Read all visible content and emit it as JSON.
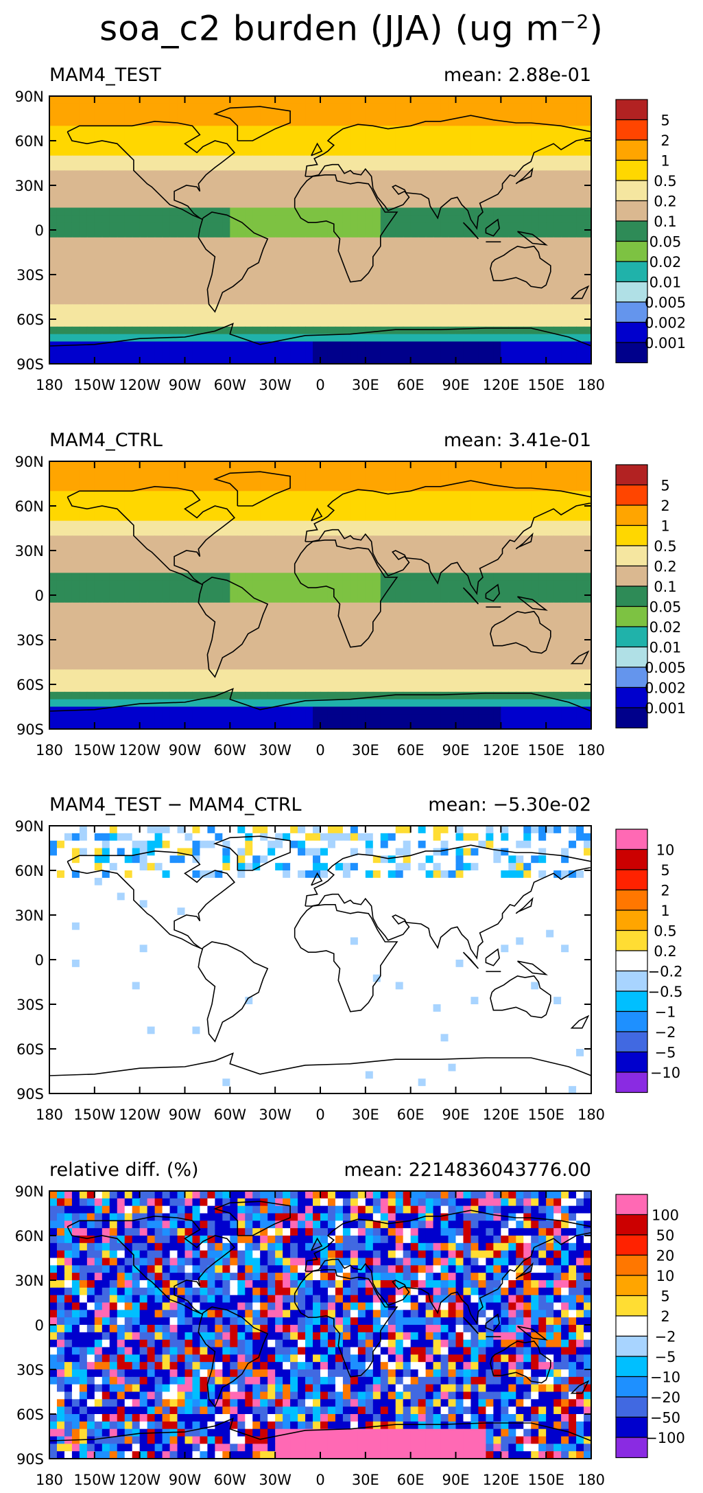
{
  "page": {
    "title_pre": "soa_c2 burden (JJA) (ug m",
    "title_exp": "−2",
    "title_post": ")"
  },
  "chart_data": [
    {
      "type": "heatmap",
      "panel": "MAM4_TEST",
      "left_label": "MAM4_TEST",
      "right_label": "mean: 2.88e-01",
      "mean": 0.288,
      "xlabel": "",
      "ylabel": "",
      "x_ticks": [
        "180",
        "150W",
        "120W",
        "90W",
        "60W",
        "30W",
        "0",
        "30E",
        "60E",
        "90E",
        "120E",
        "150E",
        "180"
      ],
      "y_ticks": [
        "90N",
        "60N",
        "30N",
        "0",
        "30S",
        "60S",
        "90S"
      ],
      "legend": {
        "levels": [
          "5",
          "2",
          "1",
          "0.5",
          "0.2",
          "0.1",
          "0.05",
          "0.02",
          "0.01",
          "0.005",
          "0.002",
          "0.001"
        ],
        "colors": [
          "#b22222",
          "#ff4500",
          "#ffa500",
          "#ffd700",
          "#f5e6a0",
          "#dab890",
          "#2e8b57",
          "#7dc242",
          "#20b2aa",
          "#b0e0e6",
          "#6495ed",
          "#0000cd",
          "#00008b"
        ]
      }
    },
    {
      "type": "heatmap",
      "panel": "MAM4_CTRL",
      "left_label": "MAM4_CTRL",
      "right_label": "mean: 3.41e-01",
      "mean": 0.341,
      "xlabel": "",
      "ylabel": "",
      "x_ticks": [
        "180",
        "150W",
        "120W",
        "90W",
        "60W",
        "30W",
        "0",
        "30E",
        "60E",
        "90E",
        "120E",
        "150E",
        "180"
      ],
      "y_ticks": [
        "90N",
        "60N",
        "30N",
        "0",
        "30S",
        "60S",
        "90S"
      ],
      "legend": {
        "levels": [
          "5",
          "2",
          "1",
          "0.5",
          "0.2",
          "0.1",
          "0.05",
          "0.02",
          "0.01",
          "0.005",
          "0.002",
          "0.001"
        ],
        "colors": [
          "#b22222",
          "#ff4500",
          "#ffa500",
          "#ffd700",
          "#f5e6a0",
          "#dab890",
          "#2e8b57",
          "#7dc242",
          "#20b2aa",
          "#b0e0e6",
          "#6495ed",
          "#0000cd",
          "#00008b"
        ]
      }
    },
    {
      "type": "heatmap",
      "panel": "difference",
      "left_label": "MAM4_TEST − MAM4_CTRL",
      "right_label": "mean: −5.30e-02",
      "mean": -0.053,
      "xlabel": "",
      "ylabel": "",
      "x_ticks": [
        "180",
        "150W",
        "120W",
        "90W",
        "60W",
        "30W",
        "0",
        "30E",
        "60E",
        "90E",
        "120E",
        "150E",
        "180"
      ],
      "y_ticks": [
        "90N",
        "60N",
        "30N",
        "0",
        "30S",
        "60S",
        "90S"
      ],
      "legend": {
        "levels": [
          "10",
          "5",
          "2",
          "1",
          "0.5",
          "0.2",
          "−0.2",
          "−0.5",
          "−1",
          "−2",
          "−5",
          "−10"
        ],
        "colors": [
          "#ff69b4",
          "#cc0000",
          "#ff2200",
          "#ff7700",
          "#ffa500",
          "#ffdd33",
          "#ffffff",
          "#a8d4ff",
          "#00bfff",
          "#1e90ff",
          "#4169e1",
          "#0000cd",
          "#8a2be2"
        ]
      }
    },
    {
      "type": "heatmap",
      "panel": "relative difference",
      "left_label": "relative diff. (%)",
      "right_label": "mean: 2214836043776.00",
      "mean": 2214836043776.0,
      "xlabel": "",
      "ylabel": "",
      "x_ticks": [
        "180",
        "150W",
        "120W",
        "90W",
        "60W",
        "30W",
        "0",
        "30E",
        "60E",
        "90E",
        "120E",
        "150E",
        "180"
      ],
      "y_ticks": [
        "90N",
        "60N",
        "30N",
        "0",
        "30S",
        "60S",
        "90S"
      ],
      "legend": {
        "levels": [
          "100",
          "50",
          "20",
          "10",
          "5",
          "2",
          "−2",
          "−5",
          "−10",
          "−20",
          "−50",
          "−100"
        ],
        "colors": [
          "#ff69b4",
          "#cc0000",
          "#ff2200",
          "#ff7700",
          "#ffa500",
          "#ffdd33",
          "#ffffff",
          "#a8d4ff",
          "#00bfff",
          "#1e90ff",
          "#4169e1",
          "#0000cd",
          "#8a2be2"
        ]
      }
    }
  ]
}
